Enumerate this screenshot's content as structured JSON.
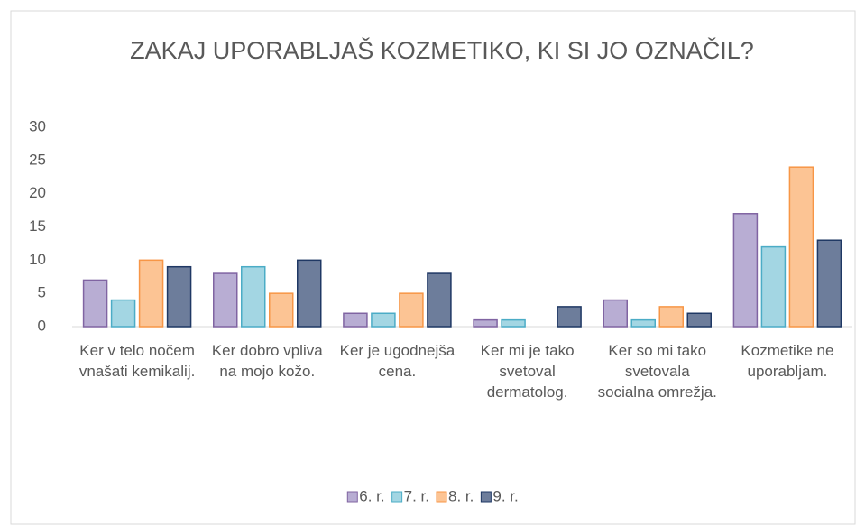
{
  "chart_data": {
    "type": "bar",
    "title": "ZAKAJ UPORABLJAŠ KOZMETIKO, KI SI JO OZNAČIL?",
    "categories": [
      "Ker v telo nočem vnašati kemikalij.",
      "Ker dobro vpliva na mojo kožo.",
      "Ker je ugodnejša cena.",
      "Ker mi je tako svetoval dermatolog.",
      "Ker so mi tako svetovala socialna omrežja.",
      "Kozmetike ne uporabljam."
    ],
    "series": [
      {
        "name": "6. r.",
        "color": "#b8add3",
        "edge": "#8064a2",
        "values": [
          7,
          8,
          2,
          1,
          4,
          17
        ]
      },
      {
        "name": "7. r.",
        "color": "#a3d6e3",
        "edge": "#4bacc6",
        "values": [
          4,
          9,
          2,
          1,
          1,
          12
        ]
      },
      {
        "name": "8. r.",
        "color": "#fcc494",
        "edge": "#f79646",
        "values": [
          10,
          5,
          5,
          0,
          3,
          24
        ]
      },
      {
        "name": "9. r.",
        "color": "#6d7d9b",
        "edge": "#1f3864",
        "values": [
          9,
          10,
          8,
          3,
          2,
          13
        ]
      }
    ],
    "ylim": [
      0,
      30
    ],
    "yticks": [
      0,
      5,
      10,
      15,
      20,
      25,
      30
    ],
    "grid": false,
    "legend": "bottom"
  }
}
